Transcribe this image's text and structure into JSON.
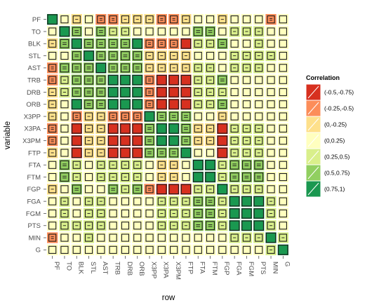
{
  "chart_data": {
    "type": "heatmap",
    "title": "",
    "xlabel": "row",
    "ylabel": "variable",
    "variables": [
      "PF",
      "TO",
      "BLK",
      "STL",
      "AST",
      "TRB",
      "DRB",
      "ORB",
      "X3PP",
      "X3PA",
      "X3PM",
      "FTP",
      "FTA",
      "FTM",
      "FGP",
      "FGA",
      "FGM",
      "PTS",
      "MIN",
      "G"
    ],
    "legend": {
      "title": "Correlation",
      "placement": "right",
      "bins": [
        "(-0.5,-0.75)",
        "(-0.25,-0.5)",
        "(0,-0.25)",
        "(0,0.25)",
        "(0.25,0.5)",
        "(0.5,0.75)",
        "(0.75,1)"
      ],
      "colors": [
        "#d7301f",
        "#fc8d59",
        "#fee08b",
        "#ffffbf",
        "#d9ef8b",
        "#91cf60",
        "#1a9850"
      ]
    },
    "bin_matrix": [
      [
        6,
        3,
        2,
        3,
        1,
        1,
        2,
        2,
        2,
        1,
        1,
        2,
        3,
        3,
        2,
        3,
        3,
        3,
        1,
        3
      ],
      [
        3,
        6,
        5,
        3,
        5,
        4,
        4,
        3,
        3,
        3,
        3,
        3,
        5,
        5,
        3,
        4,
        4,
        4,
        3,
        3
      ],
      [
        2,
        5,
        6,
        5,
        5,
        5,
        5,
        6,
        1,
        1,
        1,
        0,
        4,
        4,
        5,
        3,
        3,
        4,
        3,
        3
      ],
      [
        3,
        3,
        5,
        6,
        5,
        5,
        5,
        5,
        2,
        2,
        2,
        2,
        3,
        3,
        3,
        4,
        4,
        4,
        4,
        3
      ],
      [
        1,
        5,
        5,
        5,
        6,
        5,
        5,
        5,
        2,
        2,
        2,
        2,
        4,
        4,
        3,
        4,
        4,
        4,
        3,
        3
      ],
      [
        1,
        4,
        5,
        5,
        5,
        6,
        6,
        6,
        1,
        0,
        0,
        0,
        4,
        4,
        5,
        3,
        3,
        3,
        3,
        3
      ],
      [
        2,
        4,
        5,
        5,
        5,
        6,
        6,
        6,
        1,
        0,
        0,
        0,
        4,
        4,
        4,
        3,
        3,
        3,
        3,
        3
      ],
      [
        2,
        3,
        6,
        5,
        5,
        6,
        6,
        6,
        1,
        0,
        0,
        0,
        4,
        4,
        5,
        3,
        3,
        3,
        3,
        3
      ],
      [
        2,
        3,
        1,
        2,
        2,
        1,
        1,
        1,
        6,
        5,
        5,
        5,
        3,
        3,
        2,
        3,
        3,
        3,
        3,
        3
      ],
      [
        1,
        3,
        0,
        2,
        2,
        0,
        0,
        0,
        5,
        6,
        6,
        5,
        2,
        2,
        0,
        4,
        4,
        4,
        3,
        3
      ],
      [
        1,
        3,
        0,
        2,
        2,
        0,
        0,
        0,
        5,
        6,
        6,
        5,
        2,
        2,
        0,
        4,
        4,
        4,
        3,
        3
      ],
      [
        2,
        3,
        0,
        2,
        2,
        0,
        0,
        0,
        5,
        5,
        5,
        6,
        3,
        3,
        0,
        4,
        4,
        4,
        3,
        3
      ],
      [
        3,
        5,
        4,
        3,
        4,
        4,
        4,
        4,
        3,
        2,
        2,
        3,
        6,
        6,
        4,
        5,
        5,
        5,
        3,
        3
      ],
      [
        3,
        5,
        4,
        3,
        4,
        4,
        4,
        4,
        3,
        2,
        2,
        3,
        6,
        6,
        4,
        5,
        5,
        5,
        3,
        3
      ],
      [
        2,
        3,
        5,
        3,
        3,
        5,
        4,
        5,
        1,
        0,
        0,
        0,
        4,
        4,
        6,
        4,
        4,
        4,
        3,
        3
      ],
      [
        3,
        4,
        3,
        4,
        4,
        3,
        3,
        3,
        3,
        4,
        4,
        4,
        5,
        5,
        4,
        6,
        6,
        6,
        4,
        3
      ],
      [
        3,
        4,
        3,
        4,
        4,
        3,
        3,
        3,
        3,
        4,
        4,
        4,
        5,
        5,
        4,
        6,
        6,
        6,
        4,
        3
      ],
      [
        3,
        4,
        4,
        4,
        4,
        3,
        3,
        3,
        3,
        4,
        4,
        4,
        5,
        5,
        4,
        6,
        6,
        6,
        4,
        3
      ],
      [
        1,
        3,
        3,
        4,
        3,
        3,
        3,
        3,
        3,
        3,
        3,
        3,
        3,
        3,
        3,
        4,
        4,
        4,
        6,
        4
      ],
      [
        3,
        3,
        3,
        3,
        3,
        3,
        3,
        3,
        3,
        3,
        3,
        3,
        3,
        3,
        3,
        3,
        3,
        3,
        4,
        6
      ]
    ]
  }
}
